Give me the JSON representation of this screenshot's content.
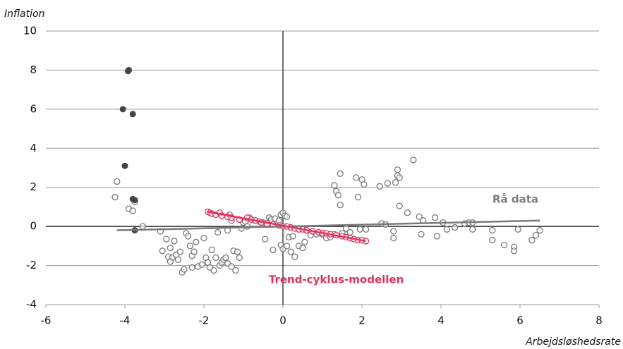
{
  "chart_data": {
    "type": "scatter",
    "y_label": "Inflation",
    "x_label": "Arbejdsløshedsrate",
    "xlim": [
      -6,
      8
    ],
    "ylim": [
      -4,
      10
    ],
    "xticks": [
      -6,
      -4,
      -2,
      0,
      2,
      4,
      6,
      8
    ],
    "yticks": [
      -4,
      -2,
      0,
      2,
      4,
      6,
      8,
      10
    ],
    "grid": "y",
    "series": [
      {
        "color": "#7a7a7a",
        "marker": "open",
        "x": [
          -4.2,
          -4.25,
          -3.9,
          -3.8,
          -3.75,
          -3.55,
          -3.1,
          -3.05,
          -2.95,
          -2.85,
          -2.9,
          -2.8,
          -2.85,
          -2.75,
          -2.7,
          -2.65,
          -2.6,
          -2.55,
          -2.5,
          -2.45,
          -2.4,
          -2.35,
          -2.3,
          -2.3,
          -2.25,
          -2.2,
          -2.15,
          -2.05,
          -2.0,
          -1.95,
          -1.9,
          -1.85,
          -1.8,
          -1.75,
          -1.7,
          -1.65,
          -1.6,
          -1.55,
          -1.5,
          -1.45,
          -1.4,
          -1.35,
          -1.3,
          -1.4,
          -1.3,
          -1.2,
          -1.25,
          -1.15,
          -1.1,
          -1.05,
          -1.0,
          -0.95,
          -0.9,
          -0.85,
          -0.7,
          -0.6,
          -0.5,
          -0.45,
          -0.35,
          -0.3,
          -0.25,
          -0.2,
          -0.1,
          -0.05,
          0.0,
          0.05,
          0.1,
          -0.05,
          0.0,
          0.1,
          0.15,
          0.2,
          0.25,
          0.3,
          0.4,
          0.5,
          0.55,
          0.6,
          0.7,
          0.85,
          1.0,
          1.1,
          1.2,
          1.3,
          1.3,
          1.35,
          1.4,
          1.45,
          1.45,
          1.5,
          1.6,
          1.7,
          1.85,
          1.9,
          1.95,
          2.0,
          2.05,
          2.1,
          2.45,
          2.5,
          2.6,
          2.65,
          2.8,
          2.8,
          2.85,
          2.9,
          2.9,
          2.95,
          2.95,
          3.15,
          3.3,
          3.45,
          3.5,
          3.55,
          3.85,
          3.9,
          4.05,
          4.15,
          4.35,
          4.6,
          4.7,
          4.8,
          4.8,
          5.3,
          5.3,
          5.6,
          5.85,
          5.85,
          5.95,
          6.3,
          6.4,
          6.5
        ],
        "values": [
          2.3,
          1.5,
          0.9,
          0.8,
          1.25,
          0.0,
          -0.25,
          -1.25,
          -0.65,
          -1.1,
          -1.55,
          -1.6,
          -1.8,
          -0.75,
          -1.45,
          -1.7,
          -1.3,
          -2.35,
          -2.2,
          -0.35,
          -0.5,
          -1.0,
          -2.1,
          -1.5,
          -1.3,
          -0.8,
          -2.05,
          -1.95,
          -0.6,
          -1.6,
          -1.85,
          -2.1,
          -1.2,
          -2.25,
          -1.6,
          -0.3,
          -2.0,
          -1.85,
          -1.7,
          -1.6,
          -0.2,
          0.6,
          0.3,
          -1.9,
          -2.05,
          -2.25,
          -1.25,
          -1.3,
          -1.6,
          -0.1,
          0.2,
          0.25,
          0.0,
          0.45,
          0.3,
          0.25,
          0.2,
          -0.65,
          0.45,
          0.35,
          -1.2,
          0.4,
          0.3,
          0.6,
          0.7,
          0.55,
          0.5,
          -0.95,
          -1.15,
          -1.0,
          -0.55,
          -1.3,
          -0.5,
          -1.55,
          -1.0,
          -1.1,
          -0.8,
          -0.2,
          -0.45,
          -0.4,
          -0.4,
          -0.6,
          -0.55,
          -0.4,
          2.1,
          1.8,
          1.6,
          1.1,
          2.7,
          -0.35,
          -0.1,
          -0.3,
          2.5,
          1.5,
          -0.15,
          2.4,
          2.15,
          -0.15,
          2.05,
          0.15,
          0.1,
          2.2,
          -0.25,
          -0.6,
          2.25,
          2.6,
          2.9,
          2.5,
          1.05,
          0.7,
          3.4,
          0.5,
          -0.4,
          0.3,
          0.45,
          -0.5,
          0.2,
          -0.15,
          -0.05,
          0.15,
          0.2,
          0.2,
          -0.15,
          -0.2,
          -0.7,
          -0.95,
          -1.05,
          -1.25,
          -0.15,
          -0.7,
          -0.45,
          -0.2
        ]
      },
      {
        "color": "#e0335f",
        "marker": "open",
        "x": [
          -1.9,
          -1.85,
          -1.8,
          -1.7,
          -1.6,
          -1.55,
          -1.4,
          -1.3,
          -1.1,
          -0.9,
          -0.8,
          -0.7,
          -0.55,
          -0.4,
          -0.25,
          -0.1,
          0.0,
          0.1,
          0.2,
          0.3,
          0.4,
          0.5,
          0.6,
          0.75,
          0.9,
          1.0,
          1.1,
          1.2,
          1.35,
          1.5,
          1.6,
          1.7,
          1.8,
          1.9,
          2.0,
          2.1
        ],
        "values": [
          0.75,
          0.7,
          0.65,
          0.6,
          0.7,
          0.55,
          0.5,
          0.45,
          0.35,
          0.45,
          0.35,
          0.3,
          0.2,
          0.15,
          0.1,
          0.05,
          0.0,
          0.0,
          -0.05,
          -0.1,
          -0.15,
          -0.15,
          -0.2,
          -0.25,
          -0.3,
          -0.35,
          -0.35,
          -0.4,
          -0.45,
          -0.5,
          -0.55,
          -0.6,
          -0.65,
          -0.7,
          -0.7,
          -0.75
        ]
      },
      {
        "color": "#444444",
        "marker": "filled",
        "x": [
          -3.9,
          -3.92,
          -4.05,
          -3.8,
          -4.0,
          -3.8,
          -3.75,
          -3.75
        ],
        "values": [
          8.0,
          7.95,
          6.0,
          5.75,
          3.1,
          1.4,
          1.35,
          -0.2
        ]
      }
    ],
    "trend_lines": [
      {
        "name": "Rå data",
        "color": "#7a7a7a",
        "x": [
          -4.2,
          6.5
        ],
        "values": [
          -0.2,
          0.3
        ]
      },
      {
        "name": "Trend-cyklus-modellen",
        "color": "#e0335f",
        "x": [
          -1.9,
          2.1
        ],
        "values": [
          0.75,
          -0.75
        ]
      }
    ]
  }
}
